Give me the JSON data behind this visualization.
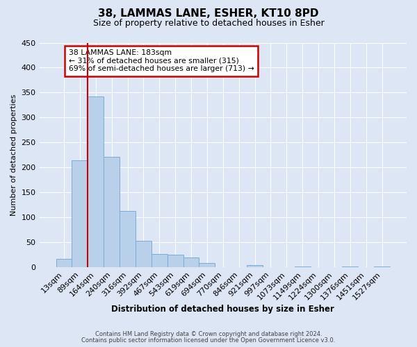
{
  "title": "38, LAMMAS LANE, ESHER, KT10 8PD",
  "subtitle": "Size of property relative to detached houses in Esher",
  "xlabel": "Distribution of detached houses by size in Esher",
  "ylabel": "Number of detached properties",
  "bar_color": "#b8d0ea",
  "bar_edge_color": "#7aadd4",
  "bg_color": "#dce6f5",
  "grid_color": "#ffffff",
  "categories": [
    "13sqm",
    "89sqm",
    "164sqm",
    "240sqm",
    "316sqm",
    "392sqm",
    "467sqm",
    "543sqm",
    "619sqm",
    "694sqm",
    "770sqm",
    "846sqm",
    "921sqm",
    "997sqm",
    "1073sqm",
    "1149sqm",
    "1224sqm",
    "1300sqm",
    "1376sqm",
    "1451sqm",
    "1527sqm"
  ],
  "values": [
    17,
    215,
    342,
    221,
    113,
    53,
    26,
    25,
    20,
    8,
    0,
    0,
    5,
    0,
    0,
    2,
    0,
    0,
    2,
    0,
    2
  ],
  "vline_color": "#cc0000",
  "vline_x": 1.5,
  "ylim": [
    0,
    450
  ],
  "yticks": [
    0,
    50,
    100,
    150,
    200,
    250,
    300,
    350,
    400,
    450
  ],
  "annotation_title": "38 LAMMAS LANE: 183sqm",
  "annotation_line1": "← 31% of detached houses are smaller (315)",
  "annotation_line2": "69% of semi-detached houses are larger (713) →",
  "annotation_box_color": "#ffffff",
  "annotation_box_edge": "#cc0000",
  "footnote1": "Contains HM Land Registry data © Crown copyright and database right 2024.",
  "footnote2": "Contains public sector information licensed under the Open Government Licence v3.0."
}
